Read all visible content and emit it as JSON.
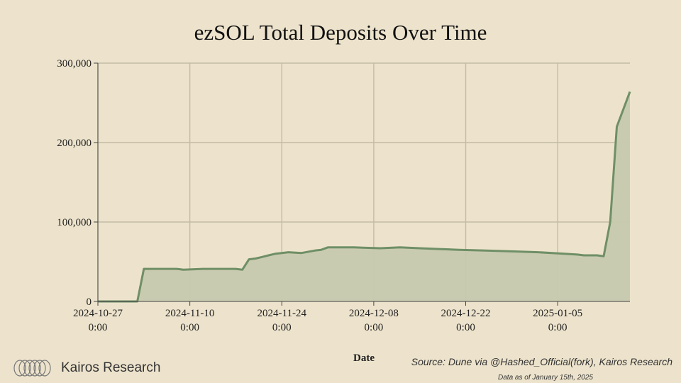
{
  "brand": {
    "name": "Kairos Research",
    "logo_icon": "kairos-rings-icon"
  },
  "footer": {
    "source": "Source: Dune via @Hashed_Official(fork), Kairos Research",
    "as_of": "Data as of January 15th, 2025"
  },
  "colors": {
    "background": "#ede3cc",
    "line": "#6f8f67",
    "fill": "#c7c9ae",
    "grid": "#c4bba5"
  },
  "chart_data": {
    "type": "area",
    "title": "ezSOL Total Deposits Over Time",
    "xlabel": "Date",
    "ylabel": "",
    "grid": true,
    "ylim": [
      0,
      300000
    ],
    "xlim": [
      "2024-10-27",
      "2025-01-16"
    ],
    "yticks": [
      {
        "value": 0,
        "label": "0"
      },
      {
        "value": 100000,
        "label": "100,000"
      },
      {
        "value": 200000,
        "label": "200,000"
      },
      {
        "value": 300000,
        "label": "300,000"
      }
    ],
    "xticks": [
      {
        "date": "2024-10-27",
        "label1": "2024-10-27",
        "label2": "0:00"
      },
      {
        "date": "2024-11-10",
        "label1": "2024-11-10",
        "label2": "0:00"
      },
      {
        "date": "2024-11-24",
        "label1": "2024-11-24",
        "label2": "0:00"
      },
      {
        "date": "2024-12-08",
        "label1": "2024-12-08",
        "label2": "0:00"
      },
      {
        "date": "2024-12-22",
        "label1": "2024-12-22",
        "label2": "0:00"
      },
      {
        "date": "2025-01-05",
        "label1": "2025-01-05",
        "label2": "0:00"
      }
    ],
    "series": [
      {
        "name": "",
        "x": [
          "2024-10-27",
          "2024-11-02",
          "2024-11-03",
          "2024-11-08",
          "2024-11-09",
          "2024-11-12",
          "2024-11-17",
          "2024-11-18",
          "2024-11-19",
          "2024-11-20",
          "2024-11-21",
          "2024-11-22",
          "2024-11-23",
          "2024-11-24",
          "2024-11-25",
          "2024-11-27",
          "2024-11-29",
          "2024-11-30",
          "2024-12-01",
          "2024-12-05",
          "2024-12-09",
          "2024-12-12",
          "2024-12-15",
          "2024-12-18",
          "2024-12-21",
          "2024-12-25",
          "2024-12-29",
          "2025-01-02",
          "2025-01-06",
          "2025-01-08",
          "2025-01-09",
          "2025-01-10",
          "2025-01-11",
          "2025-01-12",
          "2025-01-12",
          "2025-01-13",
          "2025-01-14",
          "2025-01-16"
        ],
        "y": [
          0,
          0,
          41000,
          41000,
          40000,
          41000,
          41000,
          40000,
          53000,
          54000,
          56000,
          58000,
          60000,
          61000,
          62000,
          61000,
          64000,
          65000,
          68000,
          68000,
          67000,
          68000,
          67000,
          66000,
          65000,
          64000,
          63000,
          62000,
          60000,
          59000,
          58000,
          58000,
          58000,
          57000,
          57000,
          100000,
          220000,
          264000
        ]
      }
    ]
  }
}
